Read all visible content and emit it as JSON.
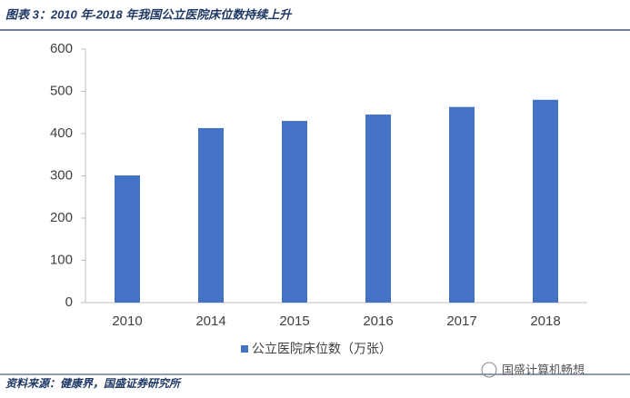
{
  "chart_data": {
    "type": "bar",
    "title": "图表 3：2010 年-2018 年我国公立医院床位数持续上升",
    "categories": [
      "2010",
      "2014",
      "2015",
      "2016",
      "2017",
      "2018"
    ],
    "series": [
      {
        "name": "公立医院床位数（万张）",
        "color": "#4472c4",
        "values": [
          301,
          413,
          430,
          445,
          463,
          480
        ]
      }
    ],
    "ylim": [
      0,
      600
    ],
    "yticks": [
      0,
      100,
      200,
      300,
      400,
      500,
      600
    ],
    "grid": false,
    "legend": "bottom",
    "source": "资料来源：健康界，国盛证券研究所",
    "watermark": "国盛计算机畅想"
  }
}
